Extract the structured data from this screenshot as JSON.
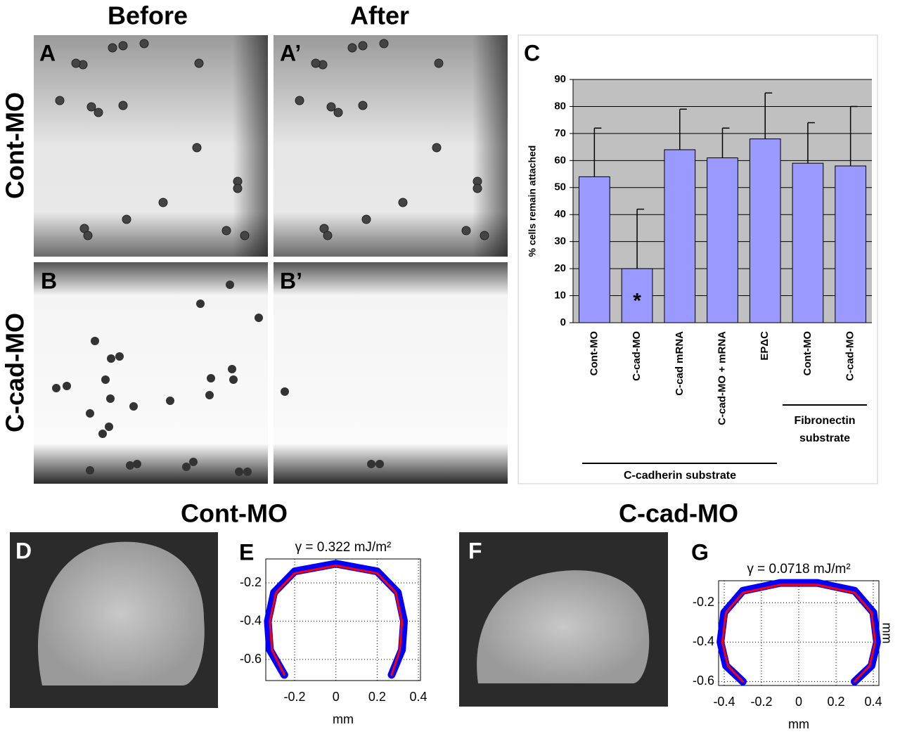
{
  "figure": {
    "column_headers": [
      "Before",
      "After"
    ],
    "row_labels": [
      "Cont-MO",
      "C-cad-MO"
    ],
    "panel_labels": [
      "A",
      "A’",
      "B",
      "B’",
      "C",
      "D",
      "E",
      "F",
      "G"
    ],
    "bottom_titles": [
      "Cont-MO",
      "C-cad-MO"
    ]
  },
  "chart_data": [
    {
      "type": "bar",
      "ylabel": "% cells remain attached",
      "categories": [
        "Cont-MO",
        "C-cad-MO",
        "C-cad mRNA",
        "C-cad-MO + mRNA",
        "EPΔC",
        "Cont-MO",
        "C-cad-MO"
      ],
      "values": [
        54,
        20,
        64,
        61,
        68,
        59,
        58
      ],
      "errors": [
        18,
        22,
        15,
        11,
        17,
        15,
        22
      ],
      "color": "#9999ff",
      "ylim": [
        0,
        90
      ],
      "yticks": [
        0,
        10,
        20,
        30,
        40,
        50,
        60,
        70,
        80,
        90
      ],
      "grid": true,
      "annotations": [
        "*",
        "C-cadherin substrate",
        "Fibronectin substrate"
      ]
    },
    {
      "type": "line",
      "title": "γ = 0.322 mJ/m²",
      "xlabel": "mm",
      "xlim": [
        -0.34,
        0.41
      ],
      "ylim": [
        -0.71,
        -0.075
      ],
      "xticks": [
        -0.2,
        0,
        0.2,
        0.4
      ],
      "yticks": [
        -0.2,
        -0.4,
        -0.6
      ],
      "grid": true,
      "series": [
        {
          "color": "#0000ff",
          "x": [
            -0.25,
            -0.32,
            -0.33,
            -0.3,
            -0.2,
            0,
            0.2,
            0.3,
            0.33,
            0.32,
            0.27
          ],
          "values": [
            -0.68,
            -0.55,
            -0.4,
            -0.25,
            -0.14,
            -0.1,
            -0.14,
            -0.25,
            -0.4,
            -0.55,
            -0.68
          ]
        },
        {
          "color": "#ff0000",
          "x": [
            -0.25,
            -0.31,
            -0.32,
            -0.29,
            -0.2,
            0,
            0.2,
            0.29,
            0.32,
            0.31,
            0.27
          ],
          "values": [
            -0.68,
            -0.55,
            -0.4,
            -0.25,
            -0.15,
            -0.11,
            -0.15,
            -0.25,
            -0.4,
            -0.55,
            -0.68
          ]
        }
      ]
    },
    {
      "type": "line",
      "title": "γ = 0.0718 mJ/m²",
      "xlabel": "mm",
      "ylabel": "mm",
      "xlim": [
        -0.43,
        0.43
      ],
      "ylim": [
        -0.62,
        -0.089
      ],
      "xticks": [
        -0.4,
        -0.2,
        0,
        0.2,
        0.4
      ],
      "yticks": [
        -0.2,
        -0.4,
        -0.6
      ],
      "grid": true,
      "series": [
        {
          "color": "#0000ff",
          "x": [
            -0.3,
            -0.39,
            -0.42,
            -0.4,
            -0.3,
            -0.1,
            0.1,
            0.3,
            0.4,
            0.42,
            0.39,
            0.3
          ],
          "values": [
            -0.6,
            -0.52,
            -0.4,
            -0.25,
            -0.14,
            -0.1,
            -0.1,
            -0.14,
            -0.25,
            -0.4,
            -0.52,
            -0.6
          ]
        },
        {
          "color": "#ff0000",
          "x": [
            -0.3,
            -0.38,
            -0.41,
            -0.39,
            -0.3,
            -0.1,
            0.1,
            0.3,
            0.39,
            0.41,
            0.38,
            0.3
          ],
          "values": [
            -0.6,
            -0.52,
            -0.4,
            -0.25,
            -0.15,
            -0.11,
            -0.11,
            -0.15,
            -0.25,
            -0.4,
            -0.52,
            -0.6
          ]
        }
      ]
    }
  ]
}
